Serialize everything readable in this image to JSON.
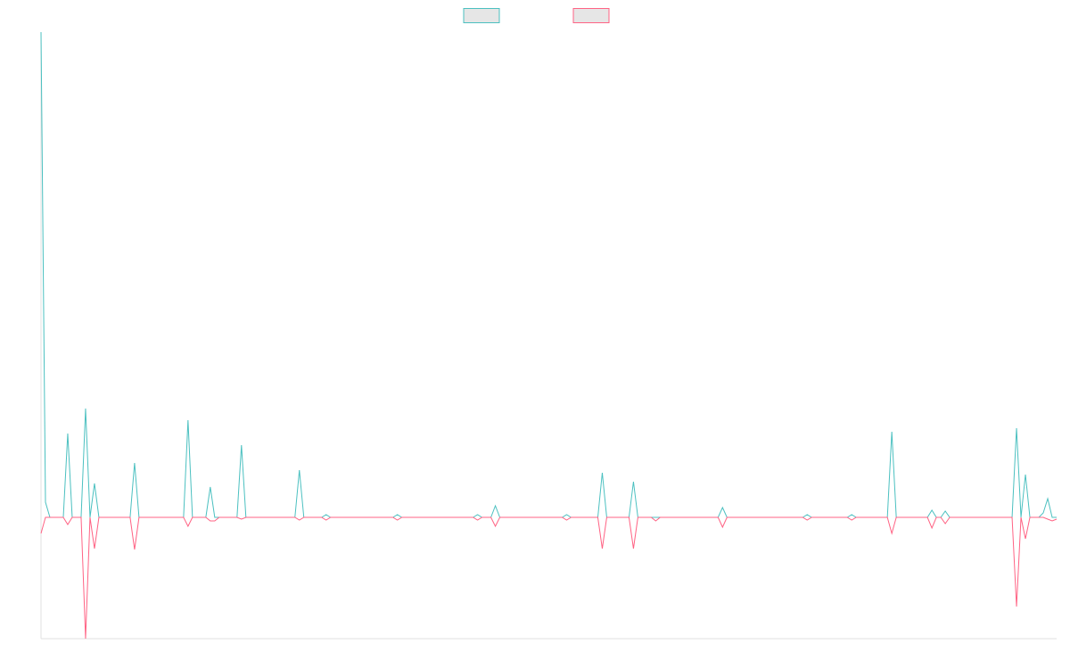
{
  "chart_data": {
    "type": "line",
    "x": [
      0,
      1,
      2,
      5,
      6,
      7,
      9,
      10,
      11,
      12,
      13,
      20,
      21,
      22,
      32,
      33,
      34,
      37,
      38,
      39,
      40,
      44,
      45,
      46,
      57,
      58,
      59,
      63,
      64,
      65,
      79,
      80,
      81,
      97,
      98,
      99,
      101,
      102,
      103,
      117,
      118,
      119,
      125,
      126,
      127,
      132,
      133,
      134,
      137,
      138,
      139,
      152,
      153,
      154,
      171,
      172,
      173,
      181,
      182,
      183,
      190,
      191,
      192,
      199,
      200,
      201,
      202,
      203,
      204,
      218,
      219,
      220,
      221,
      222,
      224,
      225,
      226,
      227,
      228
    ],
    "xlim": [
      0,
      228
    ],
    "ylim": [
      -136,
      544
    ],
    "series": [
      {
        "color": "#4bc0c0",
        "values": [
          544,
          17,
          0,
          0,
          94,
          0,
          0,
          122,
          0,
          38,
          0,
          0,
          61,
          0,
          0,
          109,
          0,
          0,
          34,
          0,
          0,
          0,
          81,
          0,
          0,
          53,
          0,
          0,
          3,
          0,
          0,
          3,
          0,
          0,
          3,
          0,
          0,
          13,
          0,
          0,
          3,
          0,
          0,
          50,
          0,
          0,
          40,
          0,
          0,
          0,
          0,
          0,
          11,
          0,
          0,
          3,
          0,
          0,
          3,
          0,
          0,
          96,
          0,
          0,
          8,
          0,
          0,
          7,
          0,
          0,
          100,
          0,
          48,
          0,
          0,
          5,
          21,
          0,
          0
        ]
      },
      {
        "color": "#ff6384",
        "values": [
          -18,
          0,
          0,
          0,
          -8,
          0,
          0,
          -136,
          0,
          -35,
          0,
          0,
          -36,
          0,
          0,
          -10,
          0,
          0,
          -4,
          -4,
          0,
          0,
          -2,
          0,
          0,
          -3,
          0,
          0,
          -3,
          0,
          0,
          -3,
          0,
          0,
          -3,
          0,
          0,
          -10,
          0,
          0,
          -3,
          0,
          0,
          -35,
          0,
          0,
          -35,
          0,
          0,
          -4,
          0,
          0,
          -11,
          0,
          0,
          -3,
          0,
          0,
          -3,
          0,
          0,
          -18,
          0,
          0,
          -12,
          0,
          0,
          -7,
          0,
          0,
          -100,
          0,
          -24,
          0,
          0,
          0,
          -2,
          -4,
          -2
        ]
      }
    ]
  }
}
